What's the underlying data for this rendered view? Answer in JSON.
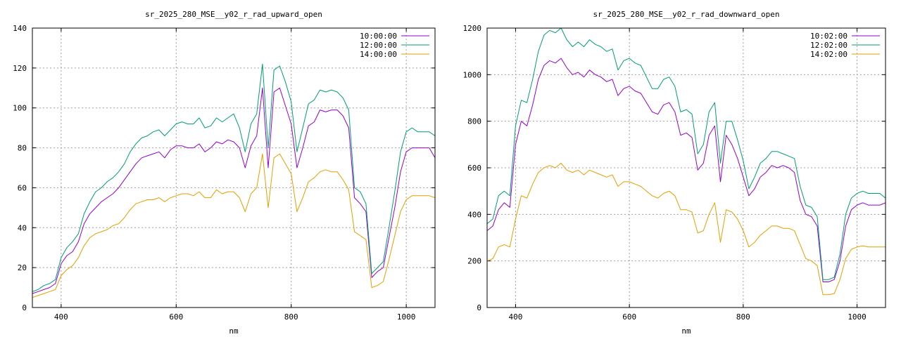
{
  "chart_data": [
    {
      "type": "line",
      "title": "sr_2025_280_MSE__y02_r_rad_upward_open",
      "xlabel": "nm",
      "ylabel": "",
      "xlim": [
        350,
        1050
      ],
      "ylim": [
        0,
        140
      ],
      "xticks": [
        400,
        600,
        800,
        1000
      ],
      "yticks": [
        0,
        20,
        40,
        60,
        80,
        100,
        120,
        140
      ],
      "grid": true,
      "legend_position": "top-right",
      "x": [
        350,
        360,
        370,
        380,
        390,
        400,
        410,
        420,
        430,
        440,
        450,
        460,
        470,
        480,
        490,
        500,
        510,
        520,
        530,
        540,
        550,
        560,
        570,
        580,
        590,
        600,
        610,
        620,
        630,
        640,
        650,
        660,
        670,
        680,
        690,
        700,
        710,
        720,
        730,
        740,
        750,
        760,
        770,
        780,
        790,
        800,
        810,
        820,
        830,
        840,
        850,
        860,
        870,
        880,
        890,
        900,
        910,
        920,
        930,
        940,
        950,
        960,
        970,
        980,
        990,
        1000,
        1010,
        1020,
        1030,
        1040,
        1050
      ],
      "series": [
        {
          "name": "10:00:00",
          "color": "#9400d3",
          "values": [
            7,
            8,
            9,
            10,
            12,
            22,
            26,
            28,
            33,
            42,
            47,
            50,
            53,
            55,
            57,
            60,
            64,
            68,
            72,
            75,
            76,
            77,
            78,
            75,
            79,
            81,
            81,
            80,
            80,
            82,
            78,
            80,
            83,
            82,
            84,
            83,
            80,
            70,
            81,
            86,
            110,
            70,
            108,
            110,
            101,
            92,
            70,
            80,
            91,
            93,
            99,
            98,
            99,
            99,
            96,
            90,
            55,
            52,
            48,
            15,
            18,
            20,
            35,
            50,
            68,
            78,
            80,
            80,
            80,
            80,
            75
          ]
        },
        {
          "name": "12:00:00",
          "color": "#009e73",
          "values": [
            8,
            9,
            11,
            12,
            14,
            25,
            30,
            33,
            37,
            47,
            53,
            58,
            60,
            63,
            65,
            68,
            72,
            78,
            82,
            85,
            86,
            88,
            89,
            86,
            89,
            92,
            93,
            92,
            92,
            95,
            90,
            91,
            95,
            93,
            95,
            97,
            90,
            78,
            92,
            97,
            122,
            80,
            119,
            121,
            113,
            103,
            78,
            90,
            102,
            104,
            109,
            108,
            109,
            108,
            105,
            99,
            60,
            58,
            52,
            17,
            20,
            23,
            40,
            58,
            78,
            88,
            90,
            88,
            88,
            88,
            86
          ]
        },
        {
          "name": "14:00:00",
          "color": "#e69f00",
          "values": [
            5,
            6,
            7,
            8,
            9,
            16,
            19,
            21,
            25,
            31,
            35,
            37,
            38,
            39,
            41,
            42,
            45,
            49,
            52,
            53,
            54,
            54,
            55,
            53,
            55,
            56,
            57,
            57,
            56,
            58,
            55,
            55,
            59,
            57,
            58,
            58,
            55,
            48,
            57,
            60,
            77,
            50,
            75,
            77,
            72,
            67,
            48,
            55,
            63,
            65,
            68,
            69,
            68,
            68,
            64,
            59,
            38,
            36,
            34,
            10,
            11,
            13,
            24,
            36,
            48,
            54,
            56,
            56,
            56,
            56,
            55
          ]
        }
      ]
    },
    {
      "type": "line",
      "title": "sr_2025_280_MSE__y02_r_rad_downward_open",
      "xlabel": "nm",
      "ylabel": "",
      "xlim": [
        350,
        1050
      ],
      "ylim": [
        0,
        1200
      ],
      "xticks": [
        400,
        600,
        800,
        1000
      ],
      "yticks": [
        0,
        200,
        400,
        600,
        800,
        1000,
        1200
      ],
      "grid": true,
      "legend_position": "top-right",
      "x": [
        350,
        360,
        370,
        380,
        390,
        400,
        410,
        420,
        430,
        440,
        450,
        460,
        470,
        480,
        490,
        500,
        510,
        520,
        530,
        540,
        550,
        560,
        570,
        580,
        590,
        600,
        610,
        620,
        630,
        640,
        650,
        660,
        670,
        680,
        690,
        700,
        710,
        720,
        730,
        740,
        750,
        760,
        770,
        780,
        790,
        800,
        810,
        820,
        830,
        840,
        850,
        860,
        870,
        880,
        890,
        900,
        910,
        920,
        930,
        940,
        950,
        960,
        970,
        980,
        990,
        1000,
        1010,
        1020,
        1030,
        1040,
        1050
      ],
      "series": [
        {
          "name": "10:02:00",
          "color": "#9400d3",
          "values": [
            330,
            350,
            420,
            450,
            430,
            700,
            800,
            780,
            870,
            980,
            1040,
            1060,
            1050,
            1070,
            1030,
            1000,
            1010,
            990,
            1020,
            1000,
            990,
            970,
            980,
            910,
            940,
            950,
            930,
            920,
            880,
            840,
            830,
            870,
            880,
            840,
            740,
            750,
            730,
            590,
            620,
            740,
            780,
            540,
            740,
            700,
            640,
            560,
            480,
            510,
            560,
            580,
            610,
            600,
            610,
            600,
            580,
            460,
            400,
            390,
            350,
            110,
            110,
            120,
            200,
            350,
            420,
            440,
            450,
            440,
            440,
            440,
            450
          ]
        },
        {
          "name": "12:02:00",
          "color": "#009e73",
          "values": [
            360,
            380,
            480,
            500,
            480,
            780,
            890,
            880,
            980,
            1100,
            1170,
            1190,
            1180,
            1200,
            1150,
            1120,
            1140,
            1120,
            1150,
            1130,
            1120,
            1100,
            1110,
            1020,
            1060,
            1070,
            1050,
            1040,
            990,
            940,
            940,
            980,
            990,
            950,
            840,
            850,
            830,
            660,
            700,
            840,
            880,
            620,
            800,
            800,
            720,
            630,
            510,
            560,
            620,
            640,
            670,
            670,
            660,
            650,
            640,
            520,
            440,
            430,
            390,
            120,
            120,
            130,
            230,
            400,
            470,
            490,
            500,
            490,
            490,
            490,
            470
          ]
        },
        {
          "name": "14:02:00",
          "color": "#e69f00",
          "values": [
            200,
            210,
            260,
            270,
            260,
            380,
            480,
            470,
            530,
            580,
            600,
            610,
            600,
            620,
            590,
            580,
            590,
            570,
            590,
            580,
            570,
            560,
            570,
            520,
            540,
            540,
            530,
            520,
            500,
            480,
            470,
            490,
            500,
            480,
            420,
            420,
            410,
            320,
            330,
            400,
            450,
            280,
            420,
            410,
            380,
            330,
            260,
            280,
            310,
            330,
            350,
            350,
            340,
            340,
            330,
            270,
            210,
            200,
            180,
            55,
            55,
            60,
            120,
            210,
            250,
            260,
            265,
            260,
            260,
            260,
            260
          ]
        }
      ]
    }
  ]
}
